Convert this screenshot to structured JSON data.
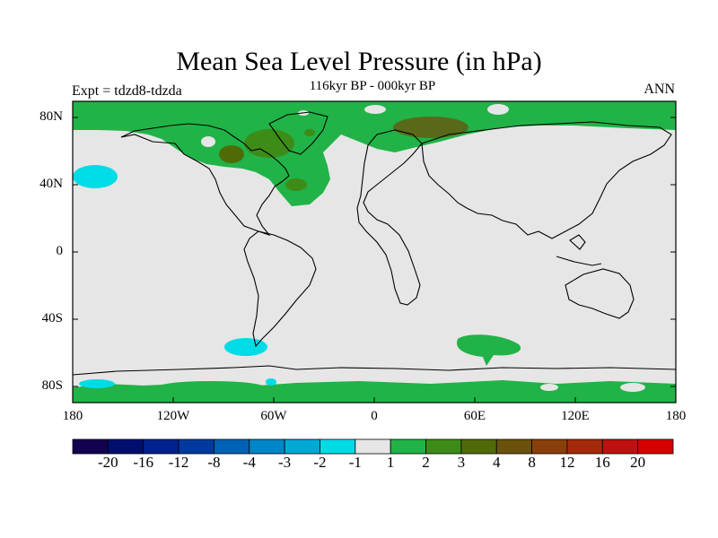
{
  "title": "Mean Sea Level Pressure (in hPa)",
  "left_label": "Expt = tdzd8-tdzda",
  "center_label": "116kyr BP - 000kyr BP",
  "right_label": "ANN",
  "lat_labels": [
    "80N",
    "40N",
    "0",
    "40S",
    "80S"
  ],
  "lon_labels": [
    "180",
    "120W",
    "60W",
    "0",
    "60E",
    "120E",
    "180"
  ],
  "colorbar": {
    "colors": [
      "#140050",
      "#000f6e",
      "#00228e",
      "#003a9e",
      "#0062b4",
      "#0085c6",
      "#00a8d4",
      "#00dce6",
      "#e6e6e6",
      "#21b347",
      "#3d8c18",
      "#4e6b08",
      "#6b520b",
      "#8a3f0a",
      "#a32a0a",
      "#bf1010",
      "#d60000"
    ],
    "labels": [
      "-20",
      "-16",
      "-12",
      "-8",
      "-4",
      "-3",
      "-2",
      "-1",
      "1",
      "2",
      "3",
      "4",
      "8",
      "12",
      "16",
      "20"
    ]
  }
}
